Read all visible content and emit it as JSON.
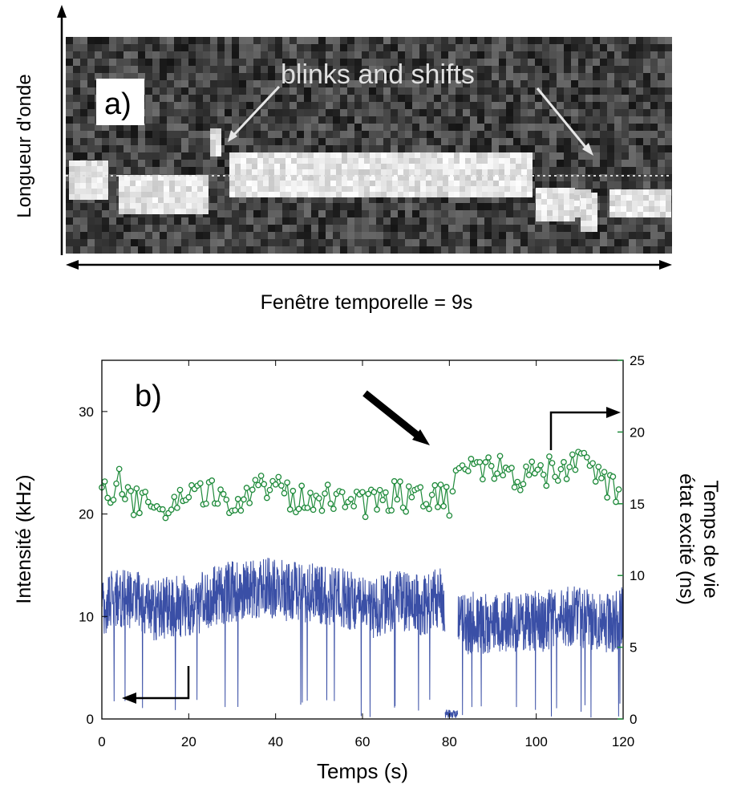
{
  "panel_a": {
    "label": "a)",
    "annotation": "blinks and shifts",
    "ylabel": "Longueur d'onde",
    "xlabel": "Fenêtre temporelle = 9s"
  },
  "panel_b": {
    "label": "b)",
    "xlabel": "Temps (s)",
    "ylabel_left": "Intensité (kHz)",
    "ylabel_right_line1": "Temps de vie",
    "ylabel_right_line2": "état excité (ns)"
  },
  "colors": {
    "intensity": "#3a4fa6",
    "lifetime": "#1e8a3a",
    "right_axis": "#1e8a3a",
    "left_axis": "#000000"
  },
  "chart_data": {
    "type": "line",
    "xlim": [
      0,
      120
    ],
    "x_ticks": [
      0,
      20,
      40,
      60,
      80,
      100,
      120
    ],
    "y_left": {
      "label": "Intensité (kHz)",
      "lim": [
        0,
        35
      ],
      "ticks": [
        0,
        10,
        20,
        30
      ]
    },
    "y_right": {
      "label": "Temps de vie état excité (ns)",
      "lim": [
        0,
        25
      ],
      "ticks": [
        0,
        5,
        10,
        15,
        20,
        25
      ]
    },
    "series": [
      {
        "axis": "left",
        "style": "noisy-line",
        "segments": [
          {
            "x": [
              0,
              4,
              8,
              12,
              16,
              20,
              24,
              26,
              30,
              34,
              38,
              42,
              46,
              50,
              54,
              58,
              60,
              62,
              66,
              70,
              74,
              78,
              79
            ],
            "y": [
              11,
              12,
              11.5,
              10.5,
              11,
              11,
              11.5,
              12,
              12.5,
              12.5,
              12.8,
              12.5,
              12.5,
              12,
              12,
              11.5,
              11,
              10.5,
              11.5,
              11.5,
              11,
              12,
              11
            ]
          },
          {
            "x": [
              79,
              80,
              81,
              82
            ],
            "y": [
              0.5,
              0.5,
              0.5,
              0.5
            ]
          },
          {
            "x": [
              82,
              86,
              90,
              94,
              98,
              102,
              106,
              110,
              114,
              118,
              120
            ],
            "y": [
              9,
              9.5,
              9,
              9.5,
              9.5,
              9.5,
              10,
              10,
              9.5,
              9.5,
              10
            ]
          }
        ]
      },
      {
        "axis": "right",
        "style": "line-circles",
        "x": [
          0,
          2,
          4,
          6,
          8,
          10,
          12,
          14,
          16,
          18,
          20,
          22,
          24,
          26,
          28,
          30,
          32,
          34,
          36,
          38,
          40,
          42,
          44,
          46,
          48,
          50,
          52,
          54,
          56,
          58,
          60,
          62,
          64,
          66,
          68,
          70,
          72,
          74,
          76,
          78,
          80,
          83,
          85,
          87,
          89,
          91,
          93,
          95,
          97,
          99,
          101,
          103,
          105,
          107,
          109,
          111,
          113,
          115,
          117,
          119
        ],
        "y": [
          15.5,
          15.8,
          16.5,
          15.5,
          15,
          14.8,
          15,
          14.5,
          14.8,
          15,
          15.2,
          15.5,
          15.3,
          15.8,
          15.2,
          15.5,
          15.3,
          15.5,
          16,
          16.3,
          16.8,
          16,
          15.5,
          15.3,
          15.5,
          15.6,
          15.5,
          15.4,
          15.8,
          15.5,
          15,
          15.3,
          15.7,
          15.4,
          15.8,
          15.5,
          15.8,
          15.9,
          15.6,
          15.4,
          15.1,
          17.5,
          18,
          17.8,
          17.2,
          17.5,
          16.8,
          17.2,
          16.8,
          17.2,
          17,
          17.2,
          17.4,
          17.5,
          17.8,
          17.6,
          17.2,
          16.8,
          16.2,
          16
        ]
      }
    ]
  }
}
